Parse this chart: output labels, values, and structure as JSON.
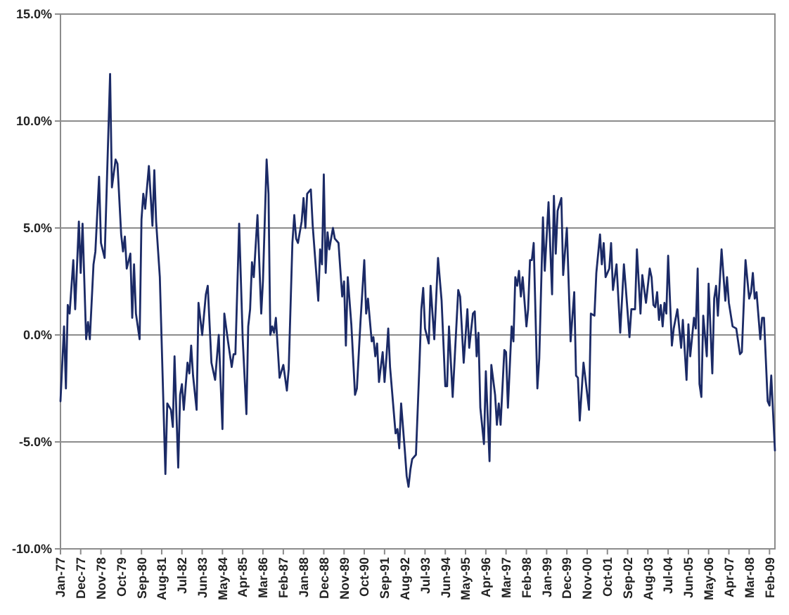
{
  "chart_data": {
    "type": "line",
    "color": "#1b2a66",
    "grid": "y",
    "xlim": [
      "1977-01",
      "2009-05"
    ],
    "ylim": [
      -10,
      15
    ],
    "yticks": [
      {
        "value": -10,
        "label": "-10.0%"
      },
      {
        "value": -5,
        "label": "-5.0%"
      },
      {
        "value": 0,
        "label": "0.0%"
      },
      {
        "value": 5,
        "label": "5.0%"
      },
      {
        "value": 10,
        "label": "10.0%"
      },
      {
        "value": 15,
        "label": "15.0%"
      }
    ],
    "xticks": [
      {
        "value": "1977-01",
        "label": "Jan-77"
      },
      {
        "value": "1977-12",
        "label": "Dec-77"
      },
      {
        "value": "1978-11",
        "label": "Nov-78"
      },
      {
        "value": "1979-10",
        "label": "Oct-79"
      },
      {
        "value": "1980-09",
        "label": "Sep-80"
      },
      {
        "value": "1981-08",
        "label": "Aug-81"
      },
      {
        "value": "1982-07",
        "label": "Jul-82"
      },
      {
        "value": "1983-06",
        "label": "Jun-83"
      },
      {
        "value": "1984-05",
        "label": "May-84"
      },
      {
        "value": "1985-04",
        "label": "Apr-85"
      },
      {
        "value": "1986-03",
        "label": "Mar-86"
      },
      {
        "value": "1987-02",
        "label": "Feb-87"
      },
      {
        "value": "1988-01",
        "label": "Jan-88"
      },
      {
        "value": "1988-12",
        "label": "Dec-88"
      },
      {
        "value": "1989-11",
        "label": "Nov-89"
      },
      {
        "value": "1990-10",
        "label": "Oct-90"
      },
      {
        "value": "1991-09",
        "label": "Sep-91"
      },
      {
        "value": "1992-08",
        "label": "Aug-92"
      },
      {
        "value": "1993-07",
        "label": "Jul-93"
      },
      {
        "value": "1994-06",
        "label": "Jun-94"
      },
      {
        "value": "1995-05",
        "label": "May-95"
      },
      {
        "value": "1996-04",
        "label": "Apr-96"
      },
      {
        "value": "1997-03",
        "label": "Mar-97"
      },
      {
        "value": "1998-02",
        "label": "Feb-98"
      },
      {
        "value": "1999-01",
        "label": "Jan-99"
      },
      {
        "value": "1999-12",
        "label": "Dec-99"
      },
      {
        "value": "2000-11",
        "label": "Nov-00"
      },
      {
        "value": "2001-10",
        "label": "Oct-01"
      },
      {
        "value": "2002-09",
        "label": "Sep-02"
      },
      {
        "value": "2003-08",
        "label": "Aug-03"
      },
      {
        "value": "2004-07",
        "label": "Jul-04"
      },
      {
        "value": "2005-06",
        "label": "Jun-05"
      },
      {
        "value": "2006-05",
        "label": "May-06"
      },
      {
        "value": "2007-04",
        "label": "Apr-07"
      },
      {
        "value": "2008-03",
        "label": "Mar-08"
      },
      {
        "value": "2009-02",
        "label": "Feb-09"
      }
    ],
    "x": [
      "1977-01",
      "1977-03",
      "1977-04",
      "1977-05",
      "1977-06",
      "1977-08",
      "1977-09",
      "1977-11",
      "1977-12",
      "1978-01",
      "1978-03",
      "1978-04",
      "1978-05",
      "1978-07",
      "1978-08",
      "1978-10",
      "1978-11",
      "1979-01",
      "1979-04",
      "1979-05",
      "1979-07",
      "1979-08",
      "1979-10",
      "1979-11",
      "1979-12",
      "1980-01",
      "1980-03",
      "1980-04",
      "1980-05",
      "1980-06",
      "1980-08",
      "1980-09",
      "1980-10",
      "1980-11",
      "1981-01",
      "1981-03",
      "1981-04",
      "1981-05",
      "1981-07",
      "1981-10",
      "1981-11",
      "1982-01",
      "1982-02",
      "1982-03",
      "1982-05",
      "1982-06",
      "1982-07",
      "1982-08",
      "1982-10",
      "1982-11",
      "1982-12",
      "1983-01",
      "1983-03",
      "1983-04",
      "1983-06",
      "1983-08",
      "1983-09",
      "1983-11",
      "1984-01",
      "1984-03",
      "1984-05",
      "1984-06",
      "1984-08",
      "1984-10",
      "1984-11",
      "1984-12",
      "1985-02",
      "1985-04",
      "1985-06",
      "1985-07",
      "1985-08",
      "1985-09",
      "1985-10",
      "1985-12",
      "1986-02",
      "1986-03",
      "1986-05",
      "1986-06",
      "1986-07",
      "1986-08",
      "1986-09",
      "1986-10",
      "1986-12",
      "1987-02",
      "1987-04",
      "1987-05",
      "1987-07",
      "1987-08",
      "1987-09",
      "1987-10",
      "1987-12",
      "1988-01",
      "1988-02",
      "1988-03",
      "1988-05",
      "1988-06",
      "1988-09",
      "1988-10",
      "1988-11",
      "1988-12",
      "1989-01",
      "1989-02",
      "1989-03",
      "1989-05",
      "1989-06",
      "1989-08",
      "1989-10",
      "1989-11",
      "1989-12",
      "1990-01",
      "1990-03",
      "1990-05",
      "1990-06",
      "1990-08",
      "1990-10",
      "1990-11",
      "1990-12",
      "1991-02",
      "1991-03",
      "1991-04",
      "1991-05",
      "1991-06",
      "1991-08",
      "1991-09",
      "1991-10",
      "1991-11",
      "1991-12",
      "1992-03",
      "1992-04",
      "1992-05",
      "1992-06",
      "1992-08",
      "1992-09",
      "1992-10",
      "1992-11",
      "1992-12",
      "1993-02",
      "1993-04",
      "1993-05",
      "1993-06",
      "1993-07",
      "1993-09",
      "1993-10",
      "1993-12",
      "1994-02",
      "1994-04",
      "1994-06",
      "1994-07",
      "1994-08",
      "1994-10",
      "1995-01",
      "1995-02",
      "1995-04",
      "1995-06",
      "1995-07",
      "1995-09",
      "1995-10",
      "1995-11",
      "1995-12",
      "1996-01",
      "1996-03",
      "1996-04",
      "1996-06",
      "1996-07",
      "1996-09",
      "1996-10",
      "1996-11",
      "1996-12",
      "1997-02",
      "1997-03",
      "1997-04",
      "1997-06",
      "1997-07",
      "1997-08",
      "1997-09",
      "1997-10",
      "1997-11",
      "1997-12",
      "1998-02",
      "1998-03",
      "1998-04",
      "1998-05",
      "1998-06",
      "1998-08",
      "1998-09",
      "1998-11",
      "1998-12",
      "1999-02",
      "1999-04",
      "1999-05",
      "1999-06",
      "1999-07",
      "1999-09",
      "1999-10",
      "1999-12",
      "2000-02",
      "2000-04",
      "2000-05",
      "2000-06",
      "2000-07",
      "2000-09",
      "2000-10",
      "2000-12",
      "2001-01",
      "2001-03",
      "2001-04",
      "2001-06",
      "2001-07",
      "2001-08",
      "2001-09",
      "2001-11",
      "2001-12",
      "2002-01",
      "2002-03",
      "2002-05",
      "2002-07",
      "2002-08",
      "2002-10",
      "2002-11",
      "2003-01",
      "2003-02",
      "2003-04",
      "2003-05",
      "2003-07",
      "2003-09",
      "2003-10",
      "2003-11",
      "2003-12",
      "2004-01",
      "2004-02",
      "2004-03",
      "2004-04",
      "2004-05",
      "2004-06",
      "2004-07",
      "2004-09",
      "2004-10",
      "2004-12",
      "2005-01",
      "2005-02",
      "2005-03",
      "2005-05",
      "2005-06",
      "2005-07",
      "2005-09",
      "2005-10",
      "2005-11",
      "2005-12",
      "2006-01",
      "2006-02",
      "2006-04",
      "2006-05",
      "2006-07",
      "2006-08",
      "2006-09",
      "2006-10",
      "2006-12",
      "2007-02",
      "2007-03",
      "2007-04",
      "2007-06",
      "2007-08",
      "2007-10",
      "2007-11",
      "2008-01",
      "2008-03",
      "2008-04",
      "2008-05",
      "2008-06",
      "2008-07",
      "2008-09",
      "2008-10",
      "2008-11",
      "2009-01",
      "2009-02",
      "2009-03",
      "2009-05"
    ],
    "values": [
      -3.1,
      0.4,
      -2.5,
      1.4,
      1.0,
      3.5,
      1.2,
      5.3,
      2.9,
      5.2,
      -0.2,
      0.6,
      -0.2,
      3.3,
      3.9,
      7.4,
      4.3,
      3.6,
      12.2,
      6.9,
      8.2,
      8.0,
      4.7,
      3.9,
      4.6,
      3.1,
      3.8,
      0.8,
      3.3,
      1.0,
      -0.2,
      5.4,
      6.6,
      5.9,
      7.9,
      5.1,
      7.7,
      5.3,
      2.7,
      -6.5,
      -3.2,
      -3.5,
      -4.3,
      -1.0,
      -6.2,
      -2.8,
      -2.3,
      -3.5,
      -1.3,
      -1.8,
      -0.5,
      -1.9,
      -3.5,
      1.5,
      0.0,
      1.9,
      2.3,
      -1.3,
      -2.1,
      0.0,
      -4.4,
      1.0,
      -0.3,
      -1.5,
      -0.9,
      -0.9,
      5.2,
      -0.2,
      -3.7,
      0.4,
      1.2,
      3.4,
      2.7,
      5.6,
      1.0,
      2.5,
      8.2,
      6.6,
      0.0,
      0.4,
      0.1,
      0.8,
      -2.0,
      -1.4,
      -2.6,
      -1.6,
      4.3,
      5.6,
      4.5,
      4.3,
      5.3,
      6.4,
      5.0,
      6.6,
      6.8,
      5.1,
      1.6,
      4.0,
      3.3,
      7.5,
      2.9,
      4.8,
      4.0,
      5.0,
      4.5,
      4.3,
      1.8,
      2.5,
      -0.5,
      2.7,
      0.5,
      -2.8,
      -2.5,
      0.7,
      3.5,
      1.0,
      1.7,
      -0.3,
      -0.1,
      -1.0,
      -0.4,
      -2.2,
      -0.8,
      -2.2,
      -1.1,
      0.3,
      -1.5,
      -4.6,
      -4.4,
      -5.3,
      -3.2,
      -5.4,
      -6.6,
      -7.1,
      -6.3,
      -5.8,
      -5.6,
      -1.3,
      1.2,
      2.2,
      0.3,
      -0.4,
      2.3,
      -0.2,
      3.6,
      1.6,
      -2.4,
      -2.4,
      0.4,
      -2.9,
      2.1,
      1.8,
      -1.3,
      1.2,
      -0.6,
      1.0,
      1.1,
      -1.0,
      0.1,
      -3.4,
      -5.1,
      -1.7,
      -5.9,
      -1.4,
      -2.8,
      -4.2,
      -3.2,
      -4.2,
      -0.7,
      -0.8,
      -3.4,
      0.4,
      -0.3,
      2.7,
      2.3,
      3.0,
      1.8,
      2.7,
      0.4,
      1.2,
      3.5,
      3.5,
      4.3,
      -2.5,
      -1.1,
      5.5,
      3.0,
      6.2,
      1.9,
      6.5,
      3.8,
      5.8,
      6.4,
      2.8,
      5.0,
      -0.3,
      2.0,
      -1.9,
      -2.0,
      -4.0,
      -1.3,
      -2.0,
      -3.5,
      1.0,
      0.9,
      2.9,
      4.7,
      3.3,
      4.3,
      2.7,
      3.1,
      4.3,
      2.1,
      3.3,
      0.1,
      3.3,
      2.2,
      -0.1,
      1.2,
      1.2,
      4.0,
      1.0,
      2.8,
      1.5,
      3.1,
      2.7,
      1.4,
      1.3,
      2.0,
      0.7,
      1.4,
      0.4,
      1.5,
      1.0,
      3.7,
      -0.5,
      0.3,
      1.2,
      0.3,
      -0.6,
      0.7,
      -2.1,
      0.5,
      -1.0,
      0.8,
      0.3,
      3.1,
      -2.3,
      -2.9,
      0.9,
      -1.0,
      2.4,
      -1.8,
      1.7,
      2.3,
      0.9,
      4.0,
      1.6,
      2.7,
      1.5,
      0.4,
      0.3,
      -0.9,
      -0.8,
      3.5,
      1.7,
      2.0,
      2.9,
      1.7,
      2.0,
      -0.2,
      0.8,
      0.8,
      -3.1,
      -3.3,
      -1.9,
      -5.4
    ]
  }
}
